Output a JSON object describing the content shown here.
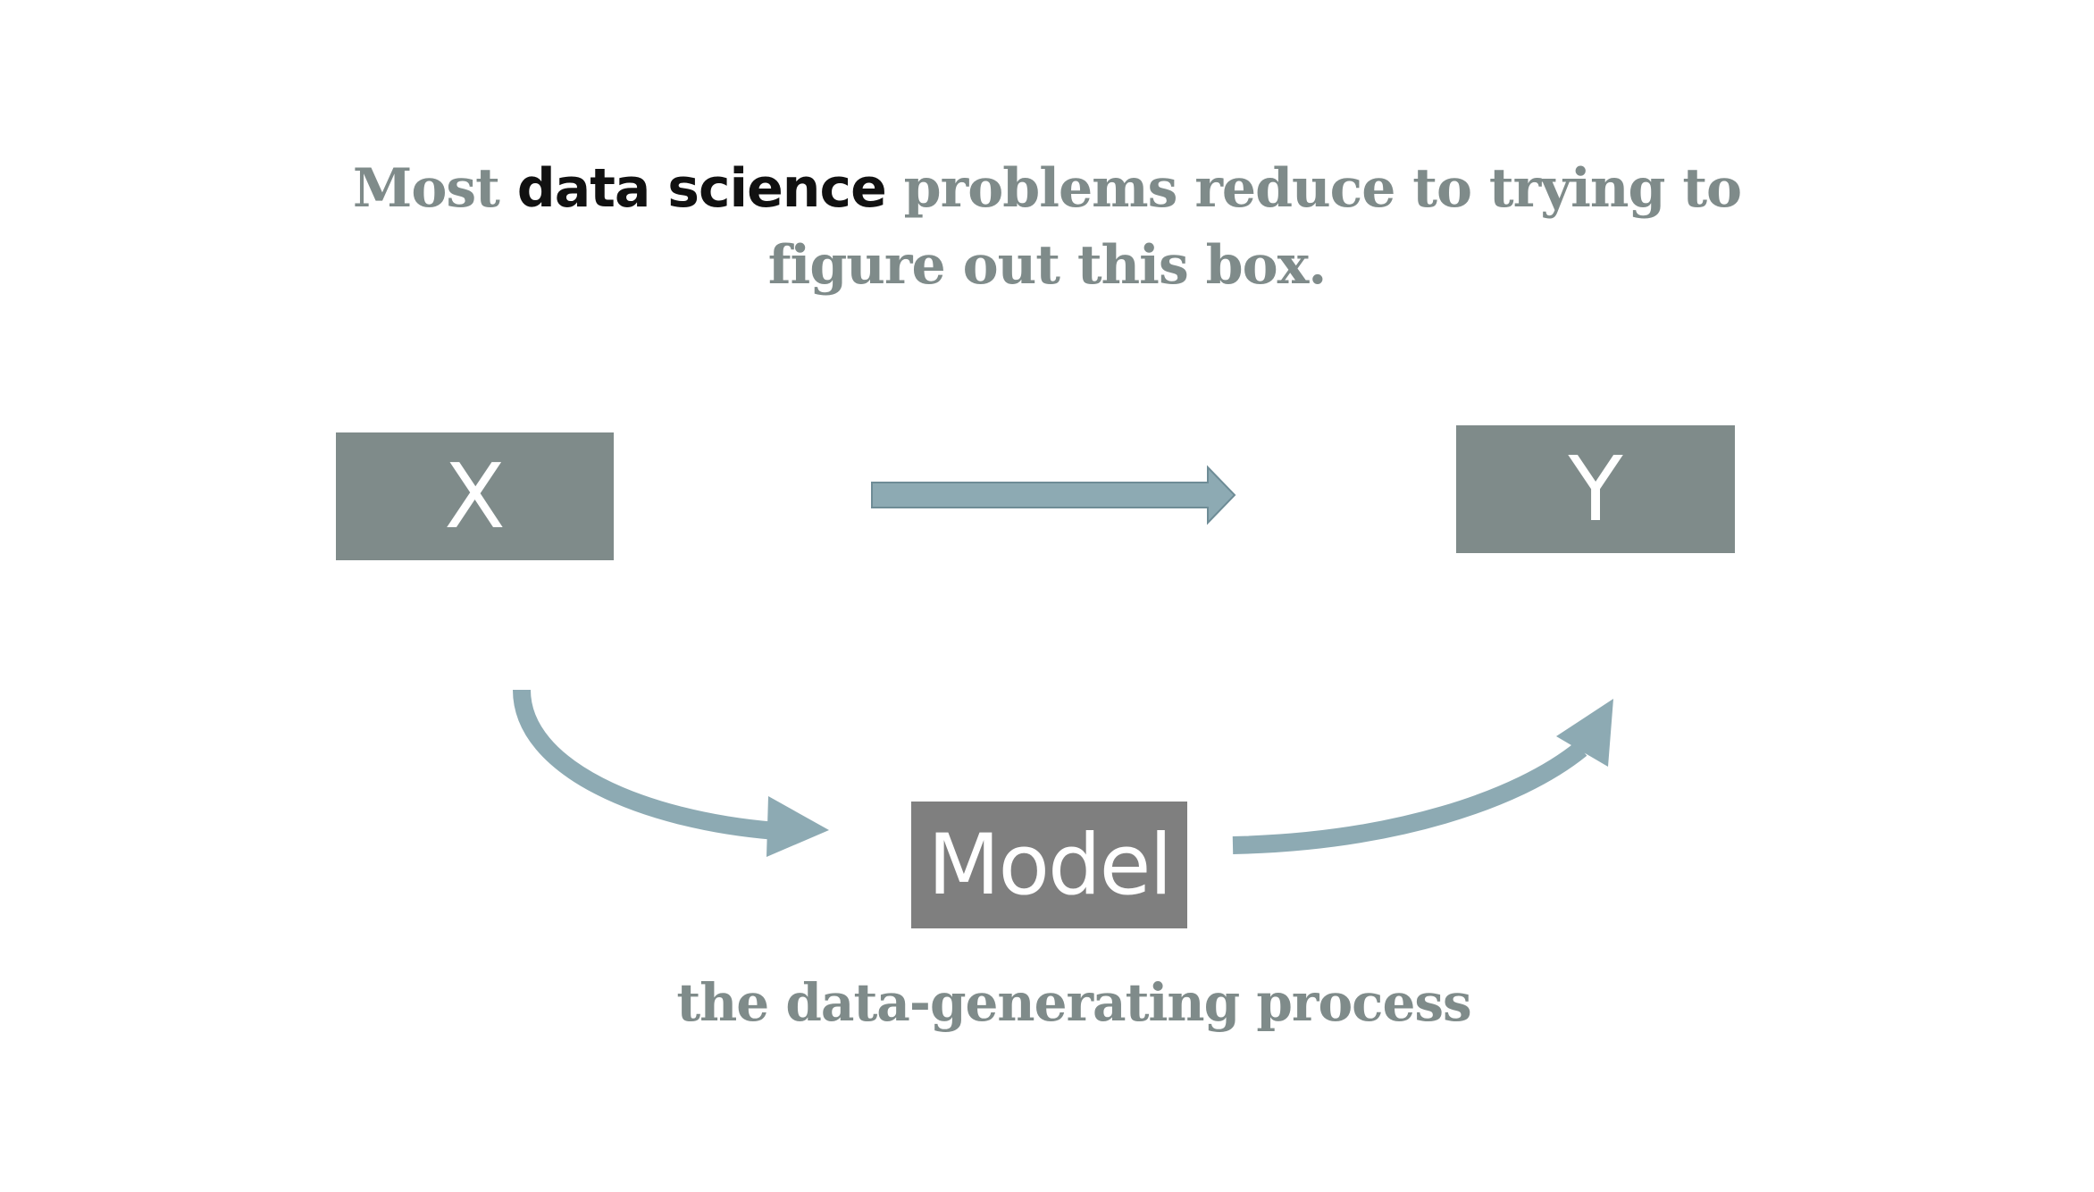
{
  "headline": {
    "part1": "Most ",
    "emphasis": "data science",
    "part2": " problems reduce to trying to",
    "line2": "figure out this box."
  },
  "diagram": {
    "input_label": "X",
    "output_label": "Y",
    "model_label": "Model",
    "caption": "the data-generating process"
  },
  "colors": {
    "box": "#7f8b8a",
    "model_box": "#7f7f7f",
    "arrow": "#8daab3",
    "text_gray": "#7f8b8a",
    "text_emphasis": "#111111"
  }
}
